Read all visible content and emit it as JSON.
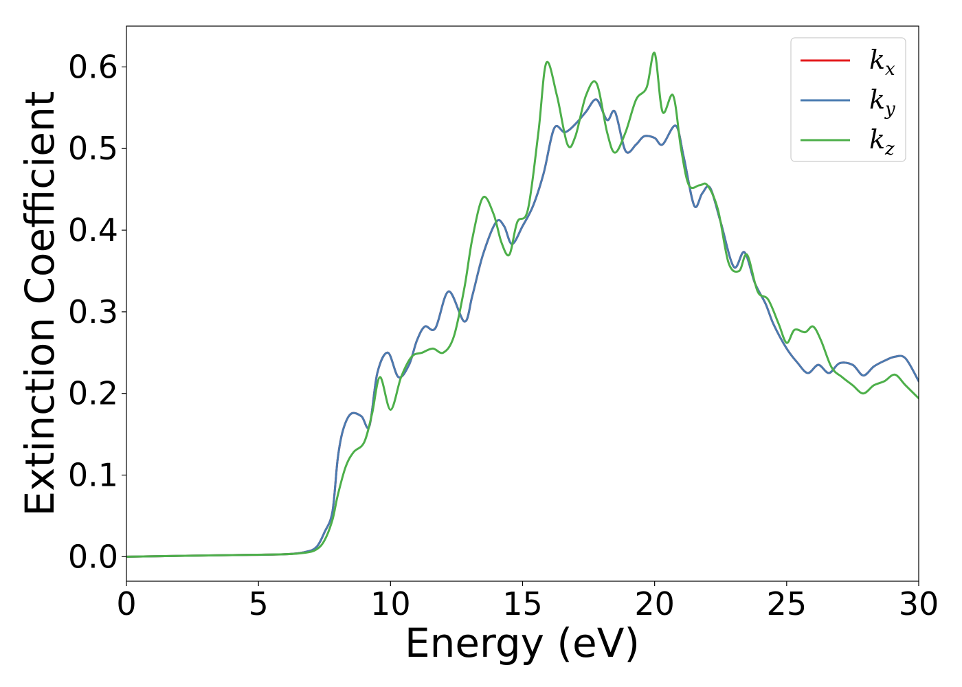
{
  "chart_data": {
    "type": "line",
    "title": "",
    "xlabel": "Energy (eV)",
    "ylabel": "Extinction Coefficient",
    "xlim": [
      0,
      30
    ],
    "ylim": [
      -0.03,
      0.65
    ],
    "xticks": [
      0,
      5,
      10,
      15,
      20,
      25,
      30
    ],
    "yticks": [
      0.0,
      0.1,
      0.2,
      0.3,
      0.4,
      0.5,
      0.6
    ],
    "xtick_labels": [
      "0",
      "5",
      "10",
      "15",
      "20",
      "25",
      "30"
    ],
    "ytick_labels": [
      "0.0",
      "0.1",
      "0.2",
      "0.3",
      "0.4",
      "0.5",
      "0.6"
    ],
    "grid": false,
    "legend_position": "top-right",
    "series": [
      {
        "name": "k_x",
        "legend_base": "k",
        "legend_sub": "x",
        "color": "#e41a1c",
        "x": [
          0,
          2,
          4,
          6,
          6.8,
          7.2,
          7.5,
          7.8,
          8.0,
          8.2,
          8.5,
          8.9,
          9.2,
          9.5,
          9.9,
          10.3,
          10.7,
          11.0,
          11.3,
          11.7,
          12.2,
          12.8,
          13.1,
          13.5,
          14.0,
          14.3,
          14.6,
          15.0,
          15.4,
          15.8,
          16.2,
          16.6,
          17.0,
          17.4,
          17.8,
          18.2,
          18.5,
          18.9,
          19.3,
          19.6,
          20.0,
          20.3,
          20.8,
          21.1,
          21.5,
          21.8,
          22.1,
          22.5,
          23.0,
          23.4,
          23.8,
          24.2,
          24.5,
          25.0,
          25.4,
          25.8,
          26.2,
          26.6,
          27.0,
          27.5,
          27.9,
          28.3,
          28.7,
          29.1,
          29.5,
          30.0
        ],
        "y": [
          0.0,
          0.001,
          0.002,
          0.003,
          0.006,
          0.012,
          0.03,
          0.055,
          0.12,
          0.155,
          0.175,
          0.172,
          0.16,
          0.225,
          0.25,
          0.22,
          0.235,
          0.265,
          0.282,
          0.28,
          0.325,
          0.288,
          0.32,
          0.37,
          0.41,
          0.405,
          0.383,
          0.405,
          0.43,
          0.47,
          0.525,
          0.52,
          0.53,
          0.545,
          0.56,
          0.535,
          0.545,
          0.497,
          0.505,
          0.515,
          0.513,
          0.505,
          0.528,
          0.49,
          0.43,
          0.445,
          0.452,
          0.41,
          0.355,
          0.373,
          0.335,
          0.31,
          0.285,
          0.255,
          0.238,
          0.225,
          0.235,
          0.225,
          0.237,
          0.235,
          0.222,
          0.233,
          0.24,
          0.245,
          0.243,
          0.215
        ]
      },
      {
        "name": "k_y",
        "legend_base": "k",
        "legend_sub": "y",
        "color": "#4a7bb0",
        "x": [
          0,
          2,
          4,
          6,
          6.8,
          7.2,
          7.5,
          7.8,
          8.0,
          8.2,
          8.5,
          8.9,
          9.2,
          9.5,
          9.9,
          10.3,
          10.7,
          11.0,
          11.3,
          11.7,
          12.2,
          12.8,
          13.1,
          13.5,
          14.0,
          14.3,
          14.6,
          15.0,
          15.4,
          15.8,
          16.2,
          16.6,
          17.0,
          17.4,
          17.8,
          18.2,
          18.5,
          18.9,
          19.3,
          19.6,
          20.0,
          20.3,
          20.8,
          21.1,
          21.5,
          21.8,
          22.1,
          22.5,
          23.0,
          23.4,
          23.8,
          24.2,
          24.5,
          25.0,
          25.4,
          25.8,
          26.2,
          26.6,
          27.0,
          27.5,
          27.9,
          28.3,
          28.7,
          29.1,
          29.5,
          30.0
        ],
        "y": [
          0.0,
          0.001,
          0.002,
          0.003,
          0.006,
          0.012,
          0.03,
          0.055,
          0.12,
          0.155,
          0.175,
          0.172,
          0.16,
          0.225,
          0.25,
          0.22,
          0.235,
          0.265,
          0.282,
          0.28,
          0.325,
          0.288,
          0.32,
          0.37,
          0.41,
          0.405,
          0.383,
          0.405,
          0.43,
          0.47,
          0.525,
          0.52,
          0.53,
          0.545,
          0.56,
          0.535,
          0.545,
          0.497,
          0.505,
          0.515,
          0.513,
          0.505,
          0.528,
          0.49,
          0.43,
          0.445,
          0.452,
          0.41,
          0.355,
          0.373,
          0.335,
          0.31,
          0.285,
          0.255,
          0.238,
          0.225,
          0.235,
          0.225,
          0.237,
          0.235,
          0.222,
          0.233,
          0.24,
          0.245,
          0.243,
          0.215
        ]
      },
      {
        "name": "k_z",
        "legend_base": "k",
        "legend_sub": "z",
        "color": "#4daf4a",
        "x": [
          0,
          2,
          4,
          6,
          6.8,
          7.2,
          7.5,
          7.8,
          8.0,
          8.3,
          8.6,
          9.0,
          9.3,
          9.6,
          10.0,
          10.4,
          10.8,
          11.2,
          11.6,
          12.0,
          12.4,
          12.8,
          13.1,
          13.5,
          13.9,
          14.2,
          14.5,
          14.8,
          15.2,
          15.6,
          15.9,
          16.3,
          16.7,
          17.0,
          17.4,
          17.8,
          18.2,
          18.5,
          18.9,
          19.3,
          19.7,
          20.0,
          20.3,
          20.7,
          21.0,
          21.3,
          21.7,
          22.0,
          22.4,
          22.8,
          23.2,
          23.5,
          23.9,
          24.3,
          24.7,
          25.0,
          25.3,
          25.7,
          26.0,
          26.3,
          26.7,
          27.1,
          27.5,
          27.9,
          28.3,
          28.7,
          29.1,
          29.5,
          30.0
        ],
        "y": [
          0.0,
          0.001,
          0.002,
          0.003,
          0.005,
          0.009,
          0.02,
          0.045,
          0.075,
          0.11,
          0.128,
          0.14,
          0.175,
          0.22,
          0.18,
          0.22,
          0.245,
          0.25,
          0.255,
          0.25,
          0.27,
          0.33,
          0.39,
          0.44,
          0.42,
          0.385,
          0.37,
          0.41,
          0.425,
          0.52,
          0.605,
          0.565,
          0.505,
          0.515,
          0.565,
          0.58,
          0.52,
          0.495,
          0.52,
          0.56,
          0.575,
          0.617,
          0.545,
          0.565,
          0.5,
          0.455,
          0.455,
          0.455,
          0.425,
          0.36,
          0.35,
          0.37,
          0.325,
          0.315,
          0.285,
          0.262,
          0.278,
          0.275,
          0.282,
          0.265,
          0.232,
          0.22,
          0.21,
          0.2,
          0.21,
          0.215,
          0.223,
          0.21,
          0.194
        ]
      }
    ]
  }
}
